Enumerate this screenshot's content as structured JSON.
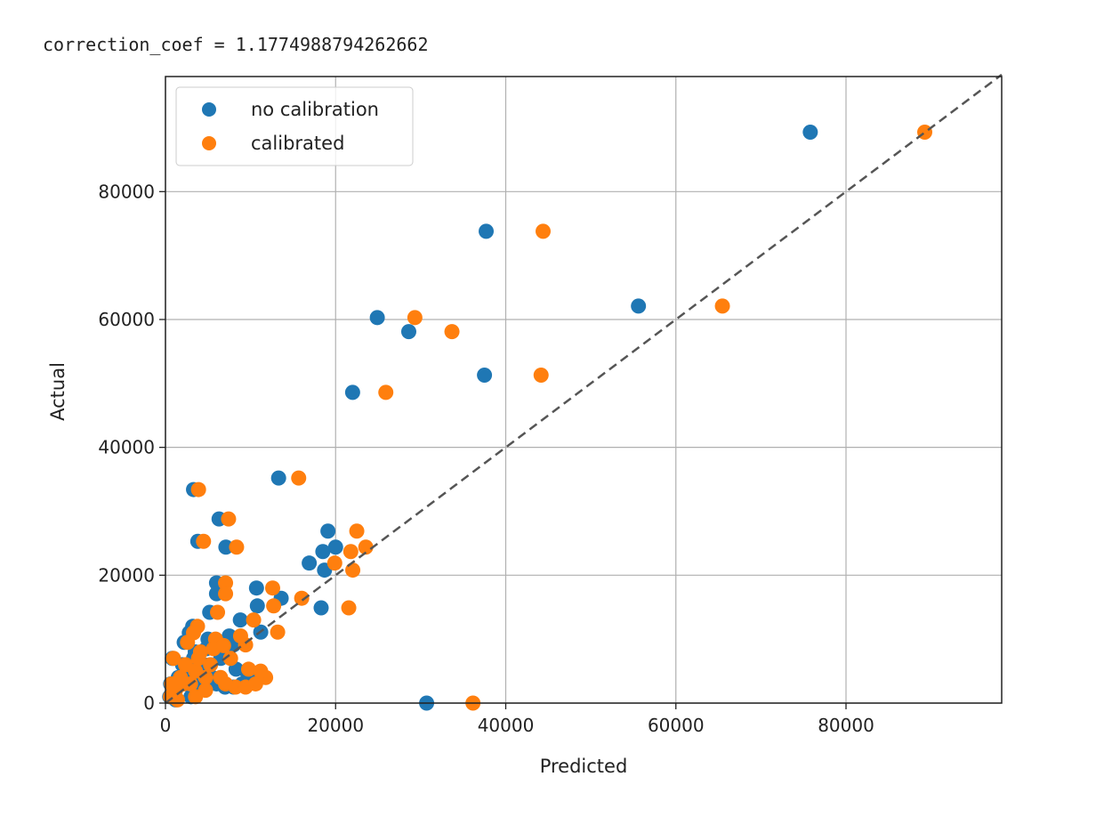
{
  "output_text": {
    "label": "correction_coef",
    "equals": "=",
    "value": "1.1774988794262662"
  },
  "chart_data": {
    "type": "scatter",
    "title": "",
    "xlabel": "Predicted",
    "ylabel": "Actual",
    "xlim": [
      0,
      98300
    ],
    "ylim": [
      0,
      98000
    ],
    "xticks": [
      0,
      20000,
      40000,
      60000,
      80000
    ],
    "yticks": [
      0,
      20000,
      40000,
      60000,
      80000
    ],
    "grid": true,
    "legend_placement": "top-left",
    "reference_line": {
      "style": "dashed",
      "color": "#555555",
      "from": [
        0,
        0
      ],
      "to": [
        98300,
        98300
      ]
    },
    "series": [
      {
        "name": "no calibration",
        "color": "#1f77b4",
        "x": [
          75800,
          37700,
          55600,
          24900,
          28600,
          37500,
          22000,
          13300,
          3300,
          6300,
          3800,
          7100,
          19100,
          20000,
          18500,
          16900,
          18700,
          18300,
          30700,
          13600,
          10700,
          10800,
          6000,
          6000,
          5200,
          3200,
          8800,
          11200,
          8000,
          8300,
          1000,
          1500,
          2000,
          800,
          2500,
          3000,
          3500,
          4000,
          4500,
          5000,
          5500,
          6000,
          7000,
          2200,
          1200,
          500,
          3000,
          4000,
          6500,
          7500,
          9000,
          10000,
          9500,
          2800,
          3300,
          1800,
          600,
          4800,
          5800,
          8000
        ],
        "y": [
          89300,
          73800,
          62100,
          60300,
          58100,
          51300,
          48600,
          35200,
          33400,
          28800,
          25300,
          24400,
          26900,
          24400,
          23700,
          21900,
          20800,
          14900,
          0,
          16400,
          18000,
          15200,
          18800,
          17100,
          14200,
          12000,
          13000,
          11100,
          9100,
          5300,
          2000,
          4000,
          6000,
          7000,
          3000,
          5000,
          8000,
          2000,
          6000,
          10000,
          4000,
          3000,
          2500,
          9500,
          500,
          1000,
          1000,
          4000,
          7000,
          10500,
          3000,
          4000,
          5000,
          11000,
          7000,
          3000,
          3000,
          8500,
          9000,
          2500
        ]
      },
      {
        "name": "calibrated",
        "color": "#ff7f0e",
        "x": [
          89255,
          44392,
          65469,
          29320,
          33677,
          44156,
          25905,
          15661,
          3886,
          7418,
          4474,
          8360,
          22490,
          23550,
          21784,
          19900,
          22019,
          21548,
          36149,
          16014,
          12599,
          12717,
          7065,
          7065,
          6123,
          3768,
          10362,
          13188,
          9420,
          9773,
          1178,
          1766,
          2355,
          942,
          2944,
          3533,
          4121,
          4710,
          5299,
          5888,
          6476,
          7065,
          8243,
          2591,
          1413,
          589,
          3533,
          4710,
          7654,
          8831,
          10598,
          11775,
          11186,
          3297,
          3886,
          2120,
          707,
          5652,
          6830,
          9420
        ],
        "y": [
          89300,
          73800,
          62100,
          60300,
          58100,
          51300,
          48600,
          35200,
          33400,
          28800,
          25300,
          24400,
          26900,
          24400,
          23700,
          21900,
          20800,
          14900,
          0,
          16400,
          18000,
          15200,
          18800,
          17100,
          14200,
          12000,
          13000,
          11100,
          9100,
          5300,
          2000,
          4000,
          6000,
          7000,
          3000,
          5000,
          8000,
          2000,
          6000,
          10000,
          4000,
          3000,
          2500,
          9500,
          500,
          1000,
          1000,
          4000,
          7000,
          10500,
          3000,
          4000,
          5000,
          11000,
          7000,
          3000,
          3000,
          8500,
          9000,
          2500
        ]
      }
    ]
  }
}
